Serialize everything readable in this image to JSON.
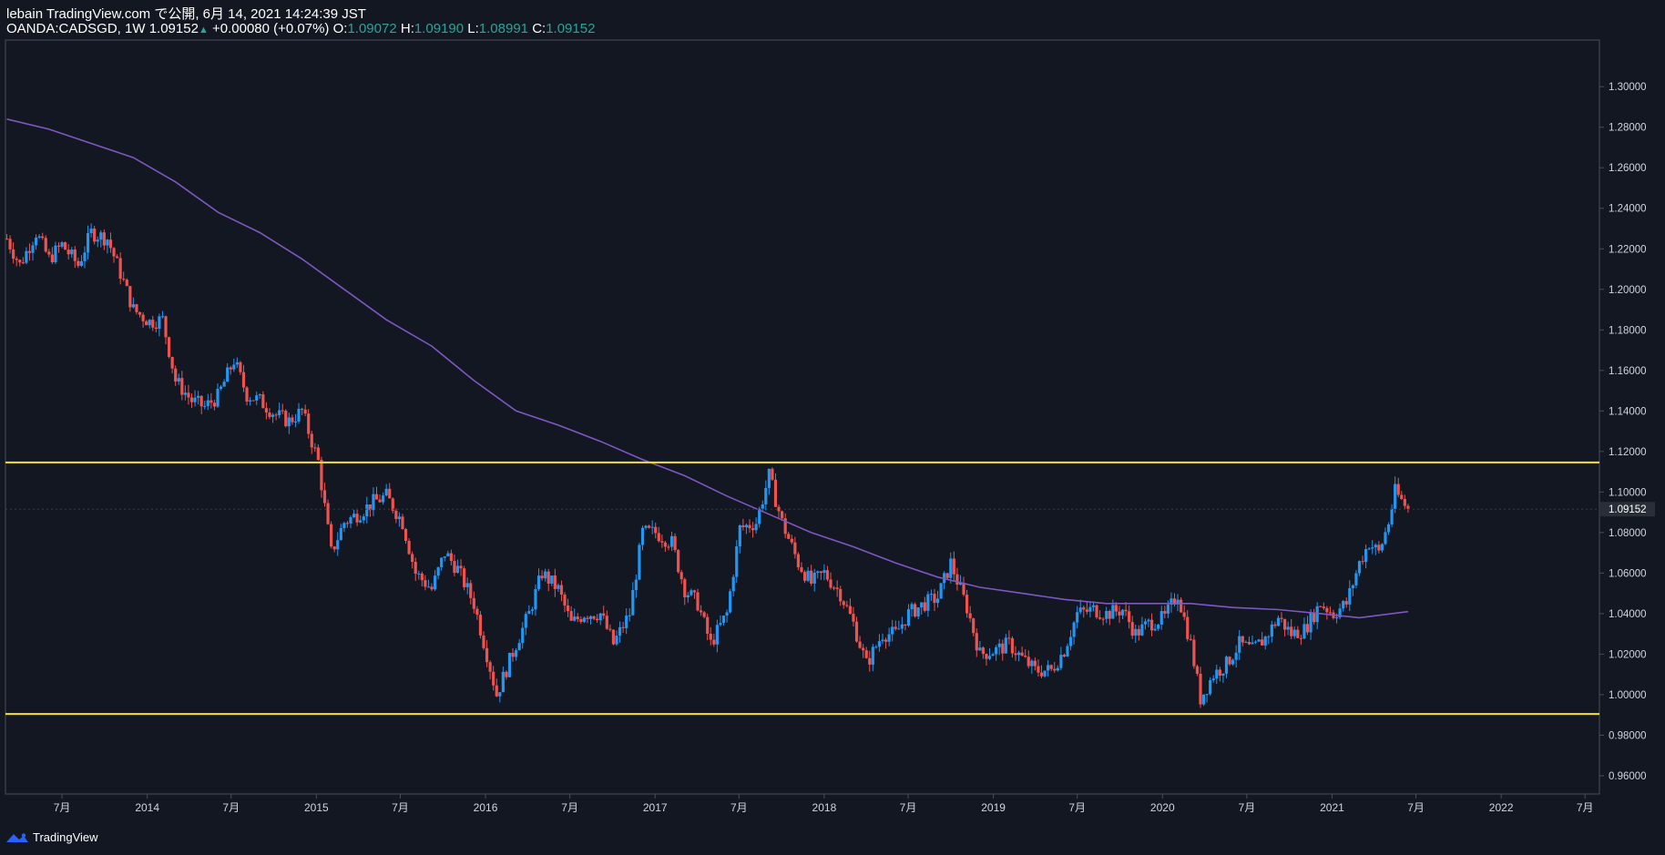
{
  "header": {
    "publisher_line": "lebain TradingView.com で公開, 6月 14, 2021 14:24:39 JST",
    "symbol": "OANDA:CADSGD, 1W",
    "last": "1.09152",
    "change": "+0.00080 (+0.07%)",
    "o_label": "O:",
    "o_value": "1.09072",
    "h_label": "H:",
    "h_value": "1.09190",
    "l_label": "L:",
    "l_value": "1.08991",
    "c_label": "C:",
    "c_value": "1.09152"
  },
  "footer": {
    "brand": "TradingView"
  },
  "colors": {
    "background": "#131722",
    "up": "#2196f3",
    "down": "#ef5350",
    "ma": "#7e57c2",
    "hline": "#f5e12f",
    "axis_text": "#d1d4dc"
  },
  "chart_data": {
    "type": "candlestick",
    "interval": "1W",
    "symbol": "OANDA:CADSGD",
    "y_axis": {
      "ticks": [
        1.3,
        1.28,
        1.26,
        1.24,
        1.22,
        1.2,
        1.18,
        1.16,
        1.14,
        1.12,
        1.1,
        1.08,
        1.06,
        1.04,
        1.02,
        1.0,
        0.98,
        0.96
      ],
      "tick_labels": [
        "1.30000",
        "1.28000",
        "1.26000",
        "1.24000",
        "1.22000",
        "1.20000",
        "1.18000",
        "1.16000",
        "1.14000",
        "1.12000",
        "1.10000",
        "1.08000",
        "1.06000",
        "1.04000",
        "1.02000",
        "1.00000",
        "0.98000",
        "0.96000"
      ],
      "range": [
        0.951,
        1.323
      ],
      "last_price_label": "1.09152",
      "last_price": 1.09152
    },
    "x_axis": {
      "range": [
        "2013-03-01",
        "2022-08-01"
      ],
      "ticks": [
        {
          "date": "2013-07-01",
          "label": "7月"
        },
        {
          "date": "2014-01-01",
          "label": "2014"
        },
        {
          "date": "2014-07-01",
          "label": "7月"
        },
        {
          "date": "2015-01-01",
          "label": "2015"
        },
        {
          "date": "2015-07-01",
          "label": "7月"
        },
        {
          "date": "2016-01-01",
          "label": "2016"
        },
        {
          "date": "2016-07-01",
          "label": "7月"
        },
        {
          "date": "2017-01-01",
          "label": "2017"
        },
        {
          "date": "2017-07-01",
          "label": "7月"
        },
        {
          "date": "2018-01-01",
          "label": "2018"
        },
        {
          "date": "2018-07-01",
          "label": "7月"
        },
        {
          "date": "2019-01-01",
          "label": "2019"
        },
        {
          "date": "2019-07-01",
          "label": "7月"
        },
        {
          "date": "2020-01-01",
          "label": "2020"
        },
        {
          "date": "2020-07-01",
          "label": "7月"
        },
        {
          "date": "2021-01-01",
          "label": "2021"
        },
        {
          "date": "2021-07-01",
          "label": "7月"
        },
        {
          "date": "2022-01-01",
          "label": "2022"
        },
        {
          "date": "2022-07-01",
          "label": "7月"
        }
      ]
    },
    "horizontal_lines": [
      {
        "value": 1.1146
      },
      {
        "value": 0.9905
      }
    ],
    "close_path": [
      [
        "2013-03-04",
        1.225
      ],
      [
        "2013-04-01",
        1.212
      ],
      [
        "2013-05-06",
        1.228
      ],
      [
        "2013-06-03",
        1.215
      ],
      [
        "2013-07-01",
        1.222
      ],
      [
        "2013-08-05",
        1.212
      ],
      [
        "2013-09-02",
        1.228
      ],
      [
        "2013-10-07",
        1.225
      ],
      [
        "2013-11-04",
        1.208
      ],
      [
        "2013-12-02",
        1.19
      ],
      [
        "2014-01-06",
        1.184
      ],
      [
        "2014-02-03",
        1.185
      ],
      [
        "2014-03-03",
        1.155
      ],
      [
        "2014-04-07",
        1.145
      ],
      [
        "2014-05-05",
        1.142
      ],
      [
        "2014-06-02",
        1.147
      ],
      [
        "2014-07-07",
        1.165
      ],
      [
        "2014-08-04",
        1.148
      ],
      [
        "2014-09-01",
        1.145
      ],
      [
        "2014-10-06",
        1.138
      ],
      [
        "2014-11-03",
        1.135
      ],
      [
        "2014-12-01",
        1.14
      ],
      [
        "2015-01-05",
        1.115
      ],
      [
        "2015-02-02",
        1.07
      ],
      [
        "2015-03-02",
        1.085
      ],
      [
        "2015-04-06",
        1.09
      ],
      [
        "2015-05-04",
        1.095
      ],
      [
        "2015-06-01",
        1.098
      ],
      [
        "2015-07-06",
        1.085
      ],
      [
        "2015-08-03",
        1.06
      ],
      [
        "2015-09-07",
        1.052
      ],
      [
        "2015-10-05",
        1.07
      ],
      [
        "2015-11-02",
        1.062
      ],
      [
        "2015-12-07",
        1.045
      ],
      [
        "2016-01-04",
        1.02
      ],
      [
        "2016-01-25",
        1.0
      ],
      [
        "2016-03-07",
        1.025
      ],
      [
        "2016-04-04",
        1.04
      ],
      [
        "2016-05-02",
        1.06
      ],
      [
        "2016-06-06",
        1.052
      ],
      [
        "2016-07-04",
        1.035
      ],
      [
        "2016-08-01",
        1.04
      ],
      [
        "2016-09-05",
        1.04
      ],
      [
        "2016-10-03",
        1.025
      ],
      [
        "2016-11-07",
        1.04
      ],
      [
        "2016-12-05",
        1.08
      ],
      [
        "2017-01-02",
        1.08
      ],
      [
        "2017-02-06",
        1.075
      ],
      [
        "2017-03-06",
        1.052
      ],
      [
        "2017-04-03",
        1.045
      ],
      [
        "2017-05-01",
        1.025
      ],
      [
        "2017-06-05",
        1.04
      ],
      [
        "2017-07-03",
        1.082
      ],
      [
        "2017-08-07",
        1.085
      ],
      [
        "2017-09-04",
        1.108
      ],
      [
        "2017-10-02",
        1.085
      ],
      [
        "2017-11-06",
        1.065
      ],
      [
        "2017-12-04",
        1.055
      ],
      [
        "2018-01-01",
        1.06
      ],
      [
        "2018-02-05",
        1.05
      ],
      [
        "2018-03-05",
        1.035
      ],
      [
        "2018-04-02",
        1.015
      ],
      [
        "2018-05-07",
        1.03
      ],
      [
        "2018-06-04",
        1.03
      ],
      [
        "2018-07-02",
        1.04
      ],
      [
        "2018-08-06",
        1.045
      ],
      [
        "2018-09-03",
        1.048
      ],
      [
        "2018-10-01",
        1.065
      ],
      [
        "2018-11-05",
        1.043
      ],
      [
        "2018-12-03",
        1.02
      ],
      [
        "2019-01-07",
        1.022
      ],
      [
        "2019-02-04",
        1.025
      ],
      [
        "2019-03-04",
        1.018
      ],
      [
        "2019-04-01",
        1.012
      ],
      [
        "2019-05-06",
        1.012
      ],
      [
        "2019-06-03",
        1.022
      ],
      [
        "2019-07-01",
        1.04
      ],
      [
        "2019-08-05",
        1.042
      ],
      [
        "2019-09-02",
        1.04
      ],
      [
        "2019-10-07",
        1.042
      ],
      [
        "2019-11-04",
        1.03
      ],
      [
        "2019-12-02",
        1.035
      ],
      [
        "2020-01-06",
        1.038
      ],
      [
        "2020-02-03",
        1.05
      ],
      [
        "2020-03-02",
        1.025
      ],
      [
        "2020-03-23",
        0.998
      ],
      [
        "2020-04-20",
        1.01
      ],
      [
        "2020-05-18",
        1.015
      ],
      [
        "2020-06-15",
        1.025
      ],
      [
        "2020-07-13",
        1.022
      ],
      [
        "2020-08-10",
        1.028
      ],
      [
        "2020-09-07",
        1.038
      ],
      [
        "2020-10-05",
        1.03
      ],
      [
        "2020-11-02",
        1.032
      ],
      [
        "2020-12-07",
        1.045
      ],
      [
        "2021-01-04",
        1.04
      ],
      [
        "2021-02-01",
        1.045
      ],
      [
        "2021-03-01",
        1.065
      ],
      [
        "2021-03-22",
        1.075
      ],
      [
        "2021-04-12",
        1.07
      ],
      [
        "2021-05-03",
        1.085
      ],
      [
        "2021-05-17",
        1.1
      ],
      [
        "2021-06-14",
        1.09152
      ]
    ],
    "ma_path": [
      [
        "2013-03-04",
        1.284
      ],
      [
        "2013-06-03",
        1.279
      ],
      [
        "2013-09-02",
        1.272
      ],
      [
        "2013-12-02",
        1.265
      ],
      [
        "2014-03-03",
        1.253
      ],
      [
        "2014-06-03",
        1.238
      ],
      [
        "2014-09-01",
        1.228
      ],
      [
        "2014-12-01",
        1.215
      ],
      [
        "2015-03-02",
        1.2
      ],
      [
        "2015-06-01",
        1.185
      ],
      [
        "2015-09-07",
        1.172
      ],
      [
        "2015-12-07",
        1.155
      ],
      [
        "2016-03-07",
        1.14
      ],
      [
        "2016-06-06",
        1.133
      ],
      [
        "2016-09-05",
        1.125
      ],
      [
        "2016-12-05",
        1.116
      ],
      [
        "2017-03-06",
        1.108
      ],
      [
        "2017-06-05",
        1.098
      ],
      [
        "2017-09-04",
        1.089
      ],
      [
        "2017-12-04",
        1.08
      ],
      [
        "2018-03-05",
        1.073
      ],
      [
        "2018-06-04",
        1.065
      ],
      [
        "2018-09-03",
        1.058
      ],
      [
        "2018-12-03",
        1.053
      ],
      [
        "2019-03-04",
        1.05
      ],
      [
        "2019-06-03",
        1.047
      ],
      [
        "2019-09-02",
        1.045
      ],
      [
        "2019-12-02",
        1.045
      ],
      [
        "2020-03-02",
        1.045
      ],
      [
        "2020-06-01",
        1.043
      ],
      [
        "2020-09-07",
        1.042
      ],
      [
        "2020-12-07",
        1.04
      ],
      [
        "2021-03-01",
        1.038
      ],
      [
        "2021-06-14",
        1.041
      ]
    ]
  }
}
